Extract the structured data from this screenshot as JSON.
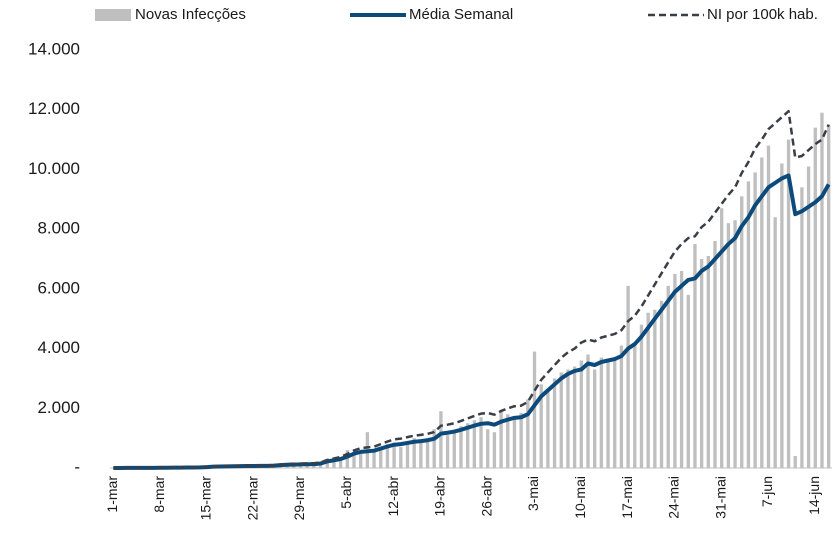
{
  "chart_data": {
    "type": "bar_line",
    "legend": "top",
    "grid": false,
    "categories": [
      "1-mar",
      null,
      null,
      null,
      null,
      null,
      null,
      "8-mar",
      null,
      null,
      null,
      null,
      null,
      null,
      "15-mar",
      null,
      null,
      null,
      null,
      null,
      null,
      "22-mar",
      null,
      null,
      null,
      null,
      null,
      null,
      "29-mar",
      null,
      null,
      null,
      null,
      null,
      null,
      "5-abr",
      null,
      null,
      null,
      null,
      null,
      null,
      "12-abr",
      null,
      null,
      null,
      null,
      null,
      null,
      "19-abr",
      null,
      null,
      null,
      null,
      null,
      null,
      "26-abr",
      null,
      null,
      null,
      null,
      null,
      null,
      "3-mai",
      null,
      null,
      null,
      null,
      null,
      null,
      "10-mai",
      null,
      null,
      null,
      null,
      null,
      null,
      "17-mai",
      null,
      null,
      null,
      null,
      null,
      null,
      "24-mai",
      null,
      null,
      null,
      null,
      null,
      null,
      "31-mai",
      null,
      null,
      null,
      null,
      null,
      null,
      "7-jun",
      null,
      null,
      null,
      null,
      null,
      null,
      "14-jun",
      null,
      null
    ],
    "ylim": [
      0,
      14000
    ],
    "yticks": [
      {
        "value": 0,
        "label": "-"
      },
      {
        "value": 2000,
        "label": "2.000"
      },
      {
        "value": 4000,
        "label": "4.000"
      },
      {
        "value": 6000,
        "label": "6.000"
      },
      {
        "value": 8000,
        "label": "8.000"
      },
      {
        "value": 10000,
        "label": "10.000"
      },
      {
        "value": 12000,
        "label": "12.000"
      },
      {
        "value": 14000,
        "label": "14.000"
      }
    ],
    "series": [
      {
        "name": "Novas Infecções",
        "kind": "bar",
        "color": "#bfbfbf",
        "values": [
          0,
          0,
          0,
          2,
          0,
          5,
          8,
          10,
          12,
          15,
          18,
          20,
          25,
          30,
          40,
          60,
          50,
          55,
          70,
          60,
          65,
          80,
          70,
          75,
          90,
          110,
          120,
          115,
          130,
          120,
          140,
          180,
          300,
          280,
          320,
          600,
          550,
          500,
          1200,
          600,
          700,
          800,
          850,
          700,
          900,
          1000,
          950,
          1000,
          1300,
          1900,
          1100,
          1250,
          1400,
          1500,
          1600,
          1700,
          1300,
          1200,
          1900,
          1800,
          1700,
          1850,
          2300,
          3900,
          2800,
          2600,
          3000,
          3200,
          3300,
          3400,
          3600,
          3800,
          3300,
          3700,
          3600,
          3700,
          4100,
          6100,
          4200,
          4800,
          5200,
          5300,
          5600,
          6100,
          6500,
          6600,
          5800,
          7500,
          7000,
          7100,
          7600,
          8700,
          8200,
          8300,
          9100,
          9600,
          9900,
          10400,
          10800,
          8400,
          10200,
          11000,
          400,
          9400,
          10100,
          11400,
          11900,
          11500
        ]
      },
      {
        "name": "Média Semanal",
        "kind": "line",
        "color": "#0d4a7c",
        "dash": false,
        "values": [
          2,
          2,
          3,
          3,
          4,
          5,
          6,
          8,
          10,
          12,
          14,
          16,
          18,
          20,
          30,
          45,
          50,
          55,
          60,
          62,
          65,
          68,
          70,
          72,
          80,
          95,
          110,
          115,
          120,
          125,
          130,
          150,
          220,
          260,
          300,
          380,
          480,
          540,
          560,
          580,
          650,
          720,
          780,
          800,
          840,
          880,
          900,
          930,
          980,
          1150,
          1180,
          1220,
          1280,
          1350,
          1420,
          1480,
          1500,
          1450,
          1550,
          1620,
          1680,
          1700,
          1800,
          2100,
          2400,
          2600,
          2800,
          3000,
          3150,
          3250,
          3300,
          3500,
          3450,
          3550,
          3600,
          3650,
          3750,
          4000,
          4150,
          4400,
          4700,
          5000,
          5300,
          5600,
          5900,
          6100,
          6300,
          6350,
          6600,
          6750,
          7000,
          7250,
          7500,
          7700,
          8100,
          8400,
          8800,
          9100,
          9400,
          9550,
          9700,
          9800,
          8500,
          8600,
          8750,
          8900,
          9100,
          9500
        ]
      },
      {
        "name": "NI por 100k hab.",
        "kind": "line",
        "color": "#3a3f47",
        "dash": true,
        "values": [
          2,
          2,
          4,
          4,
          5,
          6,
          7,
          10,
          12,
          15,
          17,
          20,
          22,
          25,
          37,
          55,
          62,
          68,
          74,
          76,
          80,
          84,
          86,
          89,
          98,
          117,
          135,
          141,
          148,
          154,
          160,
          185,
          270,
          320,
          370,
          470,
          590,
          665,
          690,
          715,
          800,
          885,
          960,
          985,
          1035,
          1085,
          1110,
          1145,
          1205,
          1415,
          1450,
          1500,
          1575,
          1660,
          1745,
          1820,
          1845,
          1785,
          1910,
          1995,
          2070,
          2090,
          2215,
          2585,
          2950,
          3200,
          3445,
          3690,
          3875,
          4000,
          4200,
          4300,
          4245,
          4370,
          4430,
          4490,
          4615,
          4920,
          5100,
          5410,
          5780,
          6150,
          6520,
          6890,
          7250,
          7500,
          7700,
          7760,
          8070,
          8250,
          8550,
          8850,
          9150,
          9400,
          9880,
          10250,
          10700,
          11000,
          11350,
          11550,
          11750,
          11950,
          10400,
          10450,
          10650,
          10850,
          11000,
          11500
        ]
      }
    ]
  }
}
